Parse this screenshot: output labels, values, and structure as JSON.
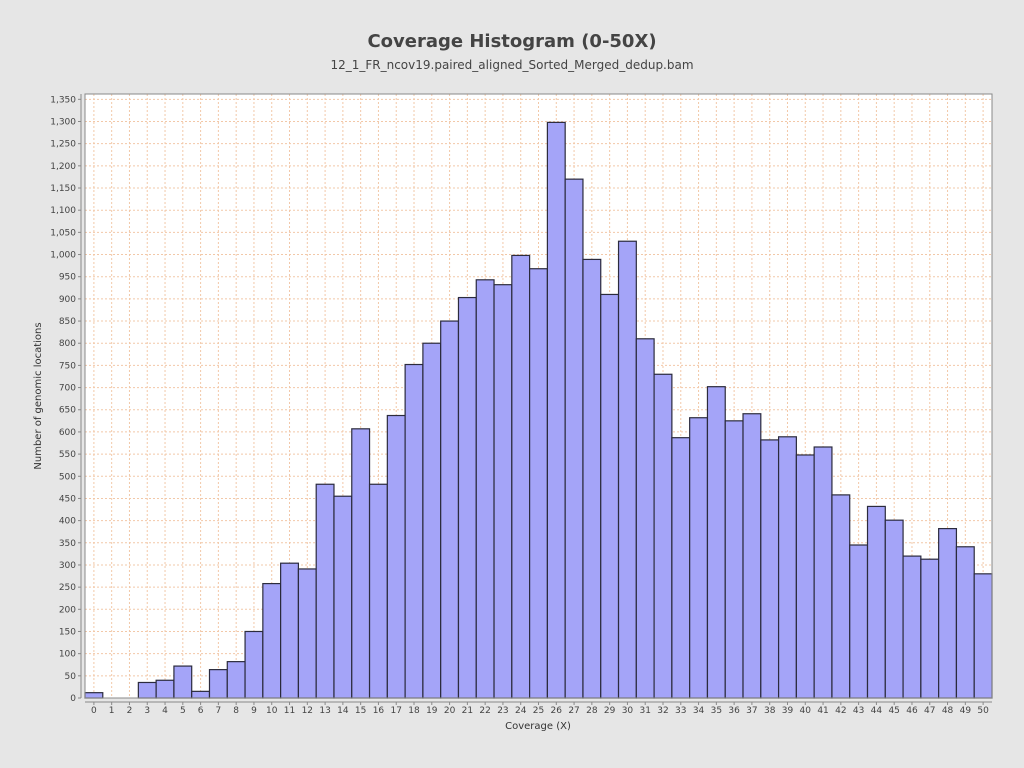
{
  "chart_data": {
    "type": "bar",
    "title": "Coverage Histogram (0-50X)",
    "subtitle": "12_1_FR_ncov19.paired_aligned_Sorted_Merged_dedup.bam",
    "xlabel": "Coverage (X)",
    "ylabel": "Number of genomic locations",
    "ylim": [
      0,
      1362
    ],
    "yticks": [
      0,
      50,
      100,
      150,
      200,
      250,
      300,
      350,
      400,
      450,
      500,
      550,
      600,
      650,
      700,
      750,
      800,
      850,
      900,
      950,
      1000,
      1050,
      1100,
      1150,
      1200,
      1250,
      1300,
      1350
    ],
    "ytick_labels": [
      "0",
      "50",
      "100",
      "150",
      "200",
      "250",
      "300",
      "350",
      "400",
      "450",
      "500",
      "550",
      "600",
      "650",
      "700",
      "750",
      "800",
      "850",
      "900",
      "950",
      "1,000",
      "1,050",
      "1,100",
      "1,150",
      "1,200",
      "1,250",
      "1,300",
      "1,350"
    ],
    "grid": true,
    "categories": [
      "0",
      "1",
      "2",
      "3",
      "4",
      "5",
      "6",
      "7",
      "8",
      "9",
      "10",
      "11",
      "12",
      "13",
      "14",
      "15",
      "16",
      "17",
      "18",
      "19",
      "20",
      "21",
      "22",
      "23",
      "24",
      "25",
      "26",
      "27",
      "28",
      "29",
      "30",
      "31",
      "32",
      "33",
      "34",
      "35",
      "36",
      "37",
      "38",
      "39",
      "40",
      "41",
      "42",
      "43",
      "44",
      "45",
      "46",
      "47",
      "48",
      "49",
      "50"
    ],
    "values": [
      12,
      0,
      0,
      35,
      40,
      72,
      15,
      64,
      82,
      150,
      258,
      304,
      291,
      482,
      455,
      607,
      482,
      637,
      752,
      800,
      850,
      903,
      943,
      932,
      998,
      968,
      1298,
      1170,
      989,
      910,
      1030,
      810,
      730,
      587,
      632,
      702,
      625,
      641,
      582,
      589,
      548,
      566,
      458,
      345,
      432,
      401,
      320,
      313,
      382,
      341,
      280
    ],
    "colors": {
      "bar_fill": "#a4a4f8",
      "bar_stroke": "#2b2b3d",
      "grid": "#f2c8a8",
      "plot_bg": "#ffffff",
      "axis": "#888888"
    }
  }
}
